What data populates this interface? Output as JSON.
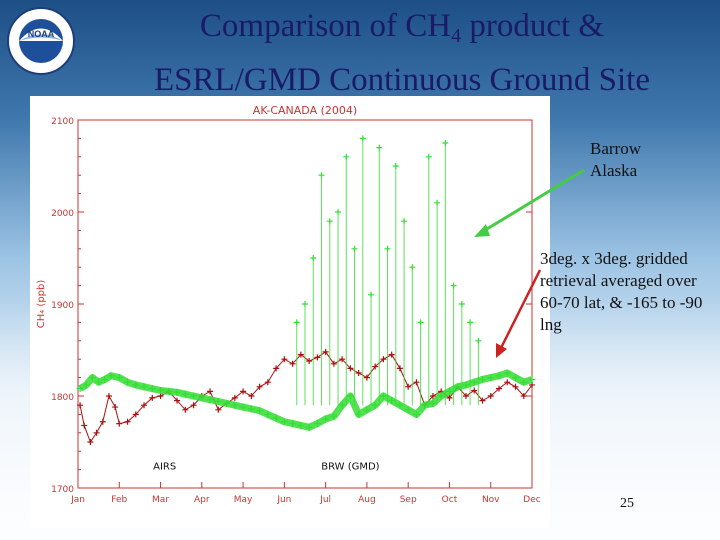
{
  "slide": {
    "title_line1_pre": "Comparison of CH",
    "title_line1_sub": "4",
    "title_line1_post": " product &",
    "title_line2": "ESRL/GMD Continuous Ground Site",
    "note_station": "Barrow Alaska",
    "note_retrieval": "3deg. x 3deg. gridded retrieval averaged over 60-70 lat, & -165 to -90 lng",
    "page_number": "25",
    "logo_text_top": "NOAA",
    "logo_text_ring": "NATIONAL OCEANIC AND ATMOSPHERIC ADMINISTRATION · U.S. DEPARTMENT OF COMMERCE"
  },
  "colors": {
    "title": "#1a1a66",
    "chart_title": "#cc3333",
    "axis": "#cc3333",
    "airs_series": "#aa1111",
    "brw_series": "#33dd33",
    "arrow": "#44cc44",
    "arrow2": "#cc2222"
  },
  "chart_data": {
    "type": "scatter",
    "title": "AK-CANADA (2004)",
    "xlabel": "",
    "ylabel": "CH₄ (ppb)",
    "ylim": [
      1700,
      2100
    ],
    "xlim": [
      0,
      11
    ],
    "grid": false,
    "x_tick_labels": [
      "Jan",
      "Feb",
      "Mar",
      "Apr",
      "May",
      "Jun",
      "Jul",
      "Aug",
      "Sep",
      "Oct",
      "Nov",
      "Dec"
    ],
    "y_ticks": [
      1700,
      1800,
      1900,
      2000,
      2100
    ],
    "y_tick_labels": [
      "1700",
      "1800",
      "1900",
      "2000",
      "2100"
    ],
    "series_labels": [
      {
        "text": "AIRS",
        "x": 2.1,
        "y": 1720
      },
      {
        "text": "BRW (GMD)",
        "x": 6.6,
        "y": 1720
      }
    ],
    "series": [
      {
        "name": "AIRS",
        "x": [
          0.05,
          0.15,
          0.3,
          0.45,
          0.6,
          0.75,
          0.9,
          1.0,
          1.2,
          1.4,
          1.6,
          1.8,
          2.0,
          2.2,
          2.4,
          2.6,
          2.8,
          3.0,
          3.2,
          3.4,
          3.6,
          3.8,
          4.0,
          4.2,
          4.4,
          4.6,
          4.8,
          5.0,
          5.2,
          5.4,
          5.6,
          5.8,
          6.0,
          6.2,
          6.4,
          6.6,
          6.8,
          7.0,
          7.2,
          7.4,
          7.6,
          7.8,
          8.0,
          8.2,
          8.4,
          8.6,
          8.8,
          9.0,
          9.2,
          9.4,
          9.6,
          9.8,
          10.0,
          10.2,
          10.4,
          10.6,
          10.8,
          11.0
        ],
        "y": [
          1790,
          1768,
          1750,
          1760,
          1772,
          1800,
          1788,
          1770,
          1772,
          1780,
          1790,
          1798,
          1800,
          1805,
          1795,
          1785,
          1790,
          1800,
          1805,
          1785,
          1792,
          1798,
          1805,
          1800,
          1810,
          1815,
          1830,
          1840,
          1835,
          1845,
          1838,
          1842,
          1848,
          1835,
          1840,
          1830,
          1825,
          1820,
          1832,
          1840,
          1845,
          1830,
          1810,
          1815,
          1790,
          1800,
          1805,
          1798,
          1810,
          1800,
          1806,
          1795,
          1800,
          1808,
          1815,
          1810,
          1800,
          1812
        ]
      },
      {
        "name": "BRW (GMD)",
        "x": [
          0.05,
          0.2,
          0.35,
          0.5,
          0.65,
          0.8,
          1.0,
          1.2,
          1.4,
          1.6,
          1.8,
          2.0,
          2.2,
          2.4,
          2.6,
          2.8,
          3.0,
          3.2,
          3.4,
          3.6,
          3.8,
          4.0,
          4.2,
          4.4,
          4.6,
          4.8,
          5.0,
          5.2,
          5.4,
          5.6,
          5.8,
          6.0,
          6.2,
          6.4,
          6.6,
          6.8,
          7.0,
          7.2,
          7.4,
          7.6,
          7.8,
          8.0,
          8.2,
          8.4,
          8.6,
          8.8,
          9.0,
          9.2,
          9.4,
          9.6,
          9.8,
          10.0,
          10.2,
          10.4,
          10.6,
          10.8,
          11.0
        ],
        "y": [
          1808,
          1812,
          1820,
          1815,
          1818,
          1822,
          1820,
          1815,
          1812,
          1810,
          1808,
          1806,
          1805,
          1804,
          1802,
          1800,
          1798,
          1796,
          1794,
          1792,
          1790,
          1788,
          1786,
          1784,
          1780,
          1776,
          1772,
          1770,
          1768,
          1766,
          1770,
          1775,
          1778,
          1790,
          1800,
          1780,
          1785,
          1790,
          1800,
          1795,
          1790,
          1785,
          1780,
          1790,
          1792,
          1800,
          1805,
          1810,
          1812,
          1815,
          1818,
          1820,
          1822,
          1825,
          1820,
          1815,
          1818
        ]
      },
      {
        "name": "BRW (GMD) spikes",
        "x": [
          5.3,
          5.5,
          5.7,
          5.9,
          6.1,
          6.3,
          6.5,
          6.7,
          6.9,
          7.1,
          7.3,
          7.5,
          7.7,
          7.9,
          8.1,
          8.3,
          8.5,
          8.7,
          8.9,
          9.1,
          9.3,
          9.5,
          9.7
        ],
        "y": [
          1880,
          1900,
          1950,
          2040,
          1990,
          2000,
          2060,
          1960,
          2080,
          1910,
          2070,
          1960,
          2050,
          1990,
          1940,
          1880,
          2060,
          2010,
          2075,
          1920,
          1900,
          1880,
          1860
        ]
      }
    ]
  }
}
